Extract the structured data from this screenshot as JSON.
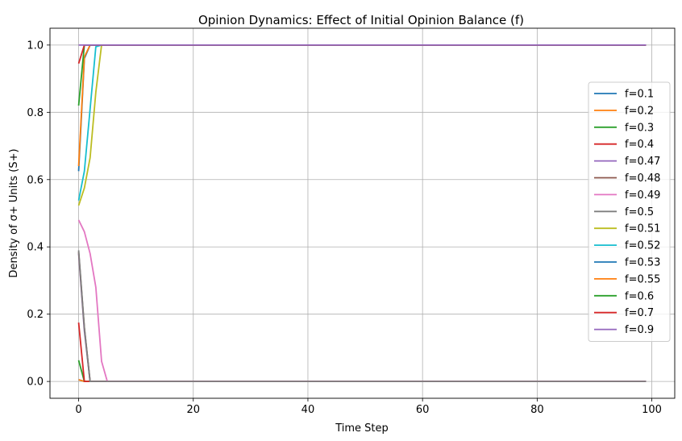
{
  "chart_data": {
    "type": "line",
    "title": "Opinion Dynamics: Effect of Initial Opinion Balance (f)",
    "xlabel": "Time Step",
    "ylabel": "Density of σ+ Units (S+)",
    "xlim": [
      -5,
      104
    ],
    "ylim": [
      -0.05,
      1.05
    ],
    "xticks": [
      0,
      20,
      40,
      60,
      80,
      100
    ],
    "yticks": [
      0.0,
      0.2,
      0.4,
      0.6,
      0.8,
      1.0
    ],
    "xtick_labels": [
      "0",
      "20",
      "40",
      "60",
      "80",
      "100"
    ],
    "ytick_labels": [
      "0.0",
      "0.2",
      "0.4",
      "0.6",
      "0.8",
      "1.0"
    ],
    "grid": true,
    "legend_position": "center-right",
    "x_end": 99,
    "series": [
      {
        "name": "f=0.1",
        "color": "#1f77b4",
        "values": [
          0.005,
          0.0
        ]
      },
      {
        "name": "f=0.2",
        "color": "#ff7f0e",
        "values": [
          0.005,
          0.0
        ]
      },
      {
        "name": "f=0.3",
        "color": "#2ca02c",
        "values": [
          0.063,
          0.0
        ]
      },
      {
        "name": "f=0.4",
        "color": "#d62728",
        "values": [
          0.175,
          0.0
        ]
      },
      {
        "name": "f=0.47",
        "color": "#9467bd",
        "values": [
          0.38,
          0.15,
          0.0
        ]
      },
      {
        "name": "f=0.48",
        "color": "#8c564b",
        "values": [
          0.385,
          0.16,
          0.0
        ]
      },
      {
        "name": "f=0.49",
        "color": "#e377c2",
        "values": [
          0.48,
          0.445,
          0.38,
          0.28,
          0.06,
          0.0
        ]
      },
      {
        "name": "f=0.5",
        "color": "#7f7f7f",
        "values": [
          0.39,
          0.16,
          0.0
        ]
      },
      {
        "name": "f=0.51",
        "color": "#bcbd22",
        "values": [
          0.523,
          0.575,
          0.665,
          0.86,
          1.0
        ]
      },
      {
        "name": "f=0.52",
        "color": "#17becf",
        "values": [
          0.538,
          0.625,
          0.81,
          0.995,
          1.0
        ]
      },
      {
        "name": "f=0.53",
        "color": "#1f77b4",
        "values": [
          0.625,
          0.96,
          1.0
        ]
      },
      {
        "name": "f=0.55",
        "color": "#ff7f0e",
        "values": [
          0.64,
          0.965,
          1.0
        ]
      },
      {
        "name": "f=0.6",
        "color": "#2ca02c",
        "values": [
          0.82,
          1.0
        ]
      },
      {
        "name": "f=0.7",
        "color": "#d62728",
        "values": [
          0.945,
          1.0
        ]
      },
      {
        "name": "f=0.9",
        "color": "#9467bd",
        "values": [
          1.0,
          1.0
        ]
      }
    ]
  }
}
